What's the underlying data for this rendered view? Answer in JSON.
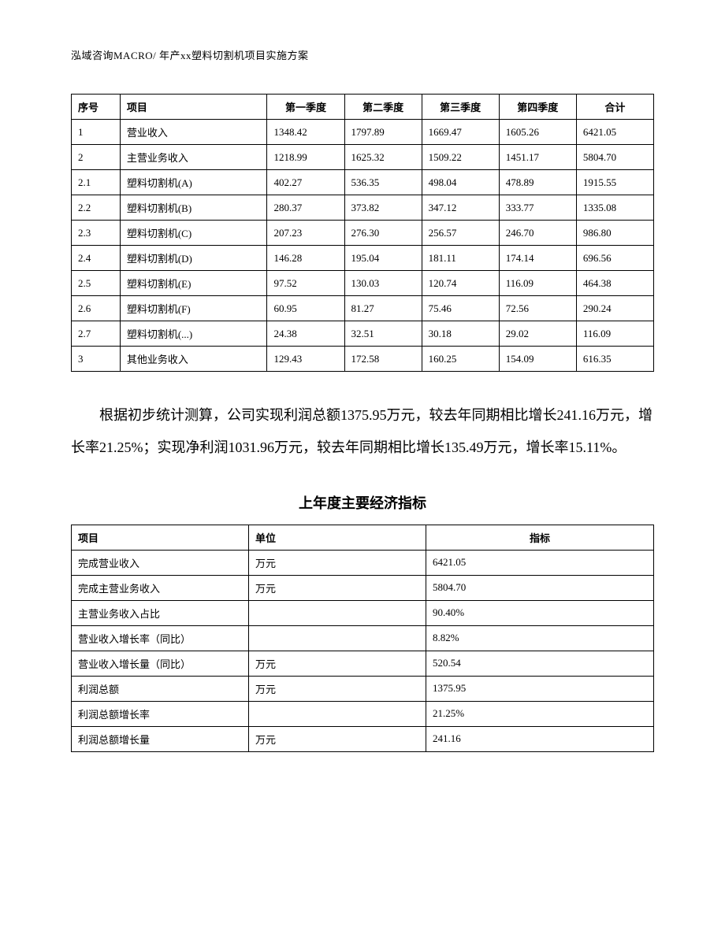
{
  "header": "泓域咨询MACRO/    年产xx塑料切割机项目实施方案",
  "table1": {
    "headers": {
      "seq": "序号",
      "item": "项目",
      "q1": "第一季度",
      "q2": "第二季度",
      "q3": "第三季度",
      "q4": "第四季度",
      "total": "合计"
    },
    "rows": [
      {
        "seq": "1",
        "item": "营业收入",
        "q1": "1348.42",
        "q2": "1797.89",
        "q3": "1669.47",
        "q4": "1605.26",
        "total": "6421.05"
      },
      {
        "seq": "2",
        "item": "主营业务收入",
        "q1": "1218.99",
        "q2": "1625.32",
        "q3": "1509.22",
        "q4": "1451.17",
        "total": "5804.70"
      },
      {
        "seq": "2.1",
        "item": "塑料切割机(A)",
        "q1": "402.27",
        "q2": "536.35",
        "q3": "498.04",
        "q4": "478.89",
        "total": "1915.55"
      },
      {
        "seq": "2.2",
        "item": "塑料切割机(B)",
        "q1": "280.37",
        "q2": "373.82",
        "q3": "347.12",
        "q4": "333.77",
        "total": "1335.08"
      },
      {
        "seq": "2.3",
        "item": "塑料切割机(C)",
        "q1": "207.23",
        "q2": "276.30",
        "q3": "256.57",
        "q4": "246.70",
        "total": "986.80"
      },
      {
        "seq": "2.4",
        "item": "塑料切割机(D)",
        "q1": "146.28",
        "q2": "195.04",
        "q3": "181.11",
        "q4": "174.14",
        "total": "696.56"
      },
      {
        "seq": "2.5",
        "item": "塑料切割机(E)",
        "q1": "97.52",
        "q2": "130.03",
        "q3": "120.74",
        "q4": "116.09",
        "total": "464.38"
      },
      {
        "seq": "2.6",
        "item": "塑料切割机(F)",
        "q1": "60.95",
        "q2": "81.27",
        "q3": "75.46",
        "q4": "72.56",
        "total": "290.24"
      },
      {
        "seq": "2.7",
        "item": "塑料切割机(...)",
        "q1": "24.38",
        "q2": "32.51",
        "q3": "30.18",
        "q4": "29.02",
        "total": "116.09"
      },
      {
        "seq": "3",
        "item": "其他业务收入",
        "q1": "129.43",
        "q2": "172.58",
        "q3": "160.25",
        "q4": "154.09",
        "total": "616.35"
      }
    ]
  },
  "paragraph": "根据初步统计测算，公司实现利润总额1375.95万元，较去年同期相比增长241.16万元，增长率21.25%；实现净利润1031.96万元，较去年同期相比增长135.49万元，增长率15.11%。",
  "subtitle": "上年度主要经济指标",
  "table2": {
    "headers": {
      "item": "项目",
      "unit": "单位",
      "value": "指标"
    },
    "rows": [
      {
        "item": "完成营业收入",
        "unit": "万元",
        "value": "6421.05"
      },
      {
        "item": "完成主营业务收入",
        "unit": "万元",
        "value": "5804.70"
      },
      {
        "item": "主营业务收入占比",
        "unit": "",
        "value": "90.40%"
      },
      {
        "item": "营业收入增长率（同比）",
        "unit": "",
        "value": "8.82%"
      },
      {
        "item": "营业收入增长量（同比）",
        "unit": "万元",
        "value": "520.54"
      },
      {
        "item": "利润总额",
        "unit": "万元",
        "value": "1375.95"
      },
      {
        "item": "利润总额增长率",
        "unit": "",
        "value": "21.25%"
      },
      {
        "item": "利润总额增长量",
        "unit": "万元",
        "value": "241.16"
      }
    ]
  }
}
